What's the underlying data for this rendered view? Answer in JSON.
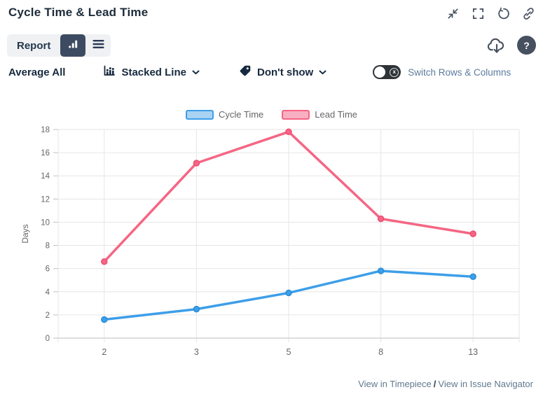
{
  "header": {
    "title": "Cycle Time & Lead Time",
    "icons": [
      "collapse-icon",
      "fullscreen-icon",
      "refresh-icon",
      "link-icon"
    ]
  },
  "toolbar": {
    "report_label": "Report",
    "download_icon": "cloud-download-icon",
    "help_label": "?"
  },
  "controls": {
    "average_label": "Average All",
    "chart_type_value": "Stacked Line",
    "estimate_value": "Don't show",
    "toggle_x": "x",
    "switch_label": "Switch Rows & Columns"
  },
  "chart_data": {
    "type": "line",
    "categories": [
      "2",
      "3",
      "5",
      "8",
      "13"
    ],
    "series": [
      {
        "name": "Cycle Time",
        "values": [
          1.6,
          2.5,
          3.9,
          5.8,
          5.3
        ],
        "color": "#3d9ee9",
        "marker_stroke": "#2b8ed6",
        "legend_fill": "#a9d3f2"
      },
      {
        "name": "Lead Time",
        "values": [
          6.6,
          15.1,
          17.8,
          10.3,
          9.0
        ],
        "color": "#f56684",
        "marker_stroke": "#ee4d71",
        "legend_fill": "#f9afc2"
      }
    ],
    "title": "",
    "xlabel": "",
    "ylabel": "Days",
    "ylim": [
      0,
      18
    ],
    "ytick_step": 2,
    "grid": true,
    "legend_position": "top"
  },
  "footer": {
    "link_timepiece": "View in Timepiece",
    "separator": "/",
    "link_issue_navigator": "View in Issue Navigator"
  },
  "colors": {
    "accent_navy": "#3c4b61",
    "control_bg": "#f0f1f3",
    "icon_dark": "#47505f",
    "axis_text": "#666666",
    "grid_line": "#e6e6e6",
    "axis_line": "#c9c9c9",
    "link_text": "#60788f",
    "toggle_label": "#5b7b9e"
  }
}
